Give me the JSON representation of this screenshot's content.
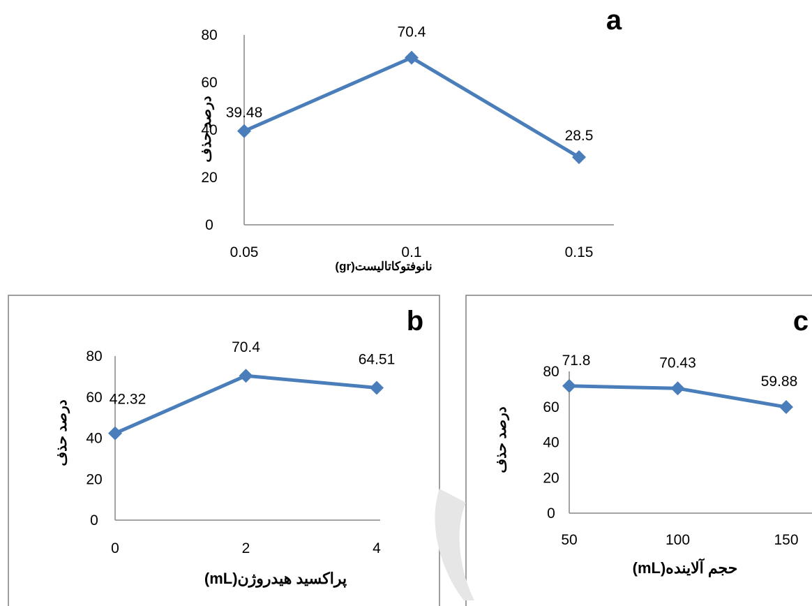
{
  "chart_data": [
    {
      "type": "line",
      "panel_label": "a",
      "categories": [
        "0.05",
        "0.1",
        "0.15"
      ],
      "values": [
        39.48,
        70.4,
        28.5
      ],
      "data_labels": [
        "39.48",
        "70.4",
        "28.5"
      ],
      "xlabel": "نانوفتوکاتالیست(gr)",
      "ylabel": "درصد حذف",
      "ylim": [
        0,
        80
      ],
      "yticks": [
        "0",
        "20",
        "40",
        "60",
        "80"
      ],
      "color": "#4a7ebb",
      "grid": false
    },
    {
      "type": "line",
      "panel_label": "b",
      "categories": [
        "0",
        "2",
        "4"
      ],
      "values": [
        42.32,
        70.4,
        64.51
      ],
      "data_labels": [
        "42.32",
        "70.4",
        "64.51"
      ],
      "xlabel": "پراکسید هیدروژن(mL)",
      "ylabel": "درصد حذف",
      "ylim": [
        0,
        80
      ],
      "yticks": [
        "0",
        "20",
        "40",
        "60",
        "80"
      ],
      "color": "#4a7ebb",
      "grid": false
    },
    {
      "type": "line",
      "panel_label": "c",
      "categories": [
        "50",
        "100",
        "150"
      ],
      "values": [
        71.8,
        70.43,
        59.88
      ],
      "data_labels": [
        "71.8",
        "70.43",
        "59.88"
      ],
      "xlabel": "حجم آلاینده(mL)",
      "ylabel": "درصد حذف",
      "ylim": [
        0,
        80
      ],
      "yticks": [
        "0",
        "20",
        "40",
        "60",
        "80"
      ],
      "color": "#4a7ebb",
      "grid": false
    }
  ]
}
